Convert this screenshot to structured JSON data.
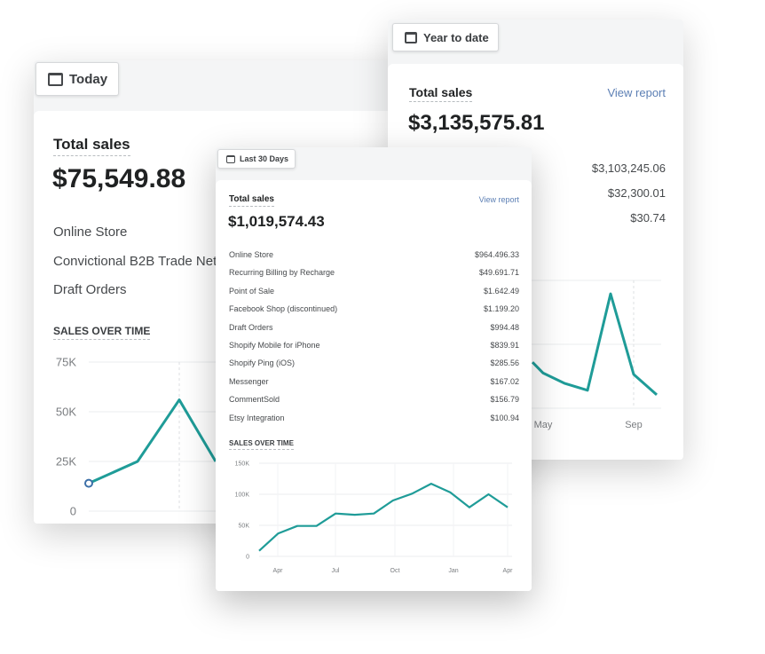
{
  "today_card": {
    "tab_label": "Today",
    "title": "Total sales",
    "amount": "$75,549.88",
    "channels": [
      "Online Store",
      "Convictional B2B Trade Net",
      "Draft Orders"
    ],
    "chart_title": "SALES OVER TIME"
  },
  "ytd_card": {
    "tab_label": "Year to date",
    "title": "Total sales",
    "view_report": "View report",
    "amount": "$3,135,575.81",
    "values": [
      "$3,103,245.06",
      "$32,300.01",
      "$30.74"
    ]
  },
  "last30_card": {
    "tab_label": "Last 30 Days",
    "title": "Total sales",
    "view_report": "View report",
    "amount": "$1,019,574.43",
    "rows": [
      {
        "label": "Online Store",
        "value": "$964.496.33"
      },
      {
        "label": "Recurring Billing by Recharge",
        "value": "$49.691.71"
      },
      {
        "label": "Point of Sale",
        "value": "$1.642.49"
      },
      {
        "label": "Facebook Shop (discontinued)",
        "value": "$1.199.20"
      },
      {
        "label": "Draft Orders",
        "value": "$994.48"
      },
      {
        "label": "Shopify Mobile for iPhone",
        "value": "$839.91"
      },
      {
        "label": "Shopify Ping (iOS)",
        "value": "$285.56"
      },
      {
        "label": "Messenger",
        "value": "$167.02"
      },
      {
        "label": "CommentSold",
        "value": "$156.79"
      },
      {
        "label": "Etsy Integration",
        "value": "$100.94"
      }
    ],
    "chart_title": "SALES OVER TIME"
  },
  "colors": {
    "line": "#1f9c98",
    "link": "#5c7fb4"
  },
  "icons": {
    "tab": "calendar-icon"
  },
  "chart_data": [
    {
      "type": "line",
      "id": "today",
      "yticks": [
        "0",
        "25K",
        "50K",
        "75K"
      ],
      "ylim": [
        0,
        75000
      ],
      "values": [
        14000,
        25000,
        56000,
        25000
      ],
      "grid": true
    },
    {
      "type": "line",
      "id": "ytd",
      "xticks": [
        "May",
        "Sep"
      ],
      "values": [
        0.72,
        0.55,
        0.39,
        0.28,
        1.79,
        0.53,
        0.21
      ],
      "grid": true
    },
    {
      "type": "line",
      "id": "last30",
      "yticks": [
        "0",
        "50K",
        "100K",
        "150K"
      ],
      "ylim": [
        0,
        150000
      ],
      "xticks": [
        "Apr",
        "Jul",
        "Oct",
        "Jan",
        "Apr"
      ],
      "values": [
        9000,
        37000,
        49000,
        49000,
        69000,
        67000,
        69000,
        90000,
        101000,
        117000,
        103000,
        79000,
        100000,
        79000
      ],
      "grid": true
    }
  ]
}
